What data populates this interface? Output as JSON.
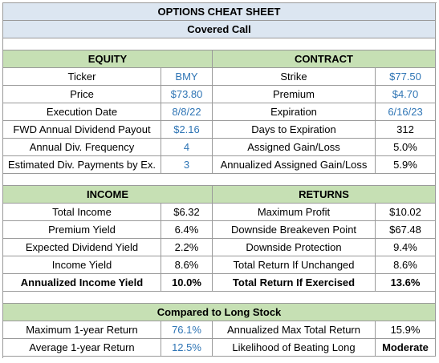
{
  "title": "OPTIONS CHEAT SHEET",
  "subtitle": "Covered Call",
  "sections": [
    {
      "headers": [
        "EQUITY",
        "CONTRACT"
      ],
      "rows": [
        [
          "Ticker",
          "BMY",
          "Strike",
          "$77.50"
        ],
        [
          "Price",
          "$73.80",
          "Premium",
          "$4.70"
        ],
        [
          "Execution Date",
          "8/8/22",
          "Expiration",
          "6/16/23"
        ],
        [
          "FWD Annual Dividend Payout",
          "$2.16",
          "Days to Expiration",
          "312"
        ],
        [
          "Annual Div. Frequency",
          "4",
          "Assigned Gain/Loss",
          "5.0%"
        ],
        [
          "Estimated Div. Payments by Ex.",
          "3",
          "Annualized Assigned Gain/Loss",
          "5.9%"
        ]
      ]
    },
    {
      "headers": [
        "INCOME",
        "RETURNS"
      ],
      "rows": [
        [
          "Total Income",
          "$6.32",
          "Maximum Profit",
          "$10.02"
        ],
        [
          "Premium Yield",
          "6.4%",
          "Downside Breakeven Point",
          "$67.48"
        ],
        [
          "Expected Dividend Yield",
          "2.2%",
          "Downside Protection",
          "9.4%"
        ],
        [
          "Income Yield",
          "8.6%",
          "Total Return If Unchanged",
          "8.6%"
        ],
        [
          "Annualized Income Yield",
          "10.0%",
          "Total Return If Exercised",
          "13.6%"
        ]
      ]
    },
    {
      "headers": [
        "Compared to Long Stock"
      ],
      "rows": [
        [
          "Maximum 1-year Return",
          "76.1%",
          "Annualized Max Total Return",
          "15.9%"
        ],
        [
          "Average 1-year Return",
          "12.5%",
          "Likelihood of Beating Long",
          "Moderate"
        ]
      ]
    }
  ]
}
